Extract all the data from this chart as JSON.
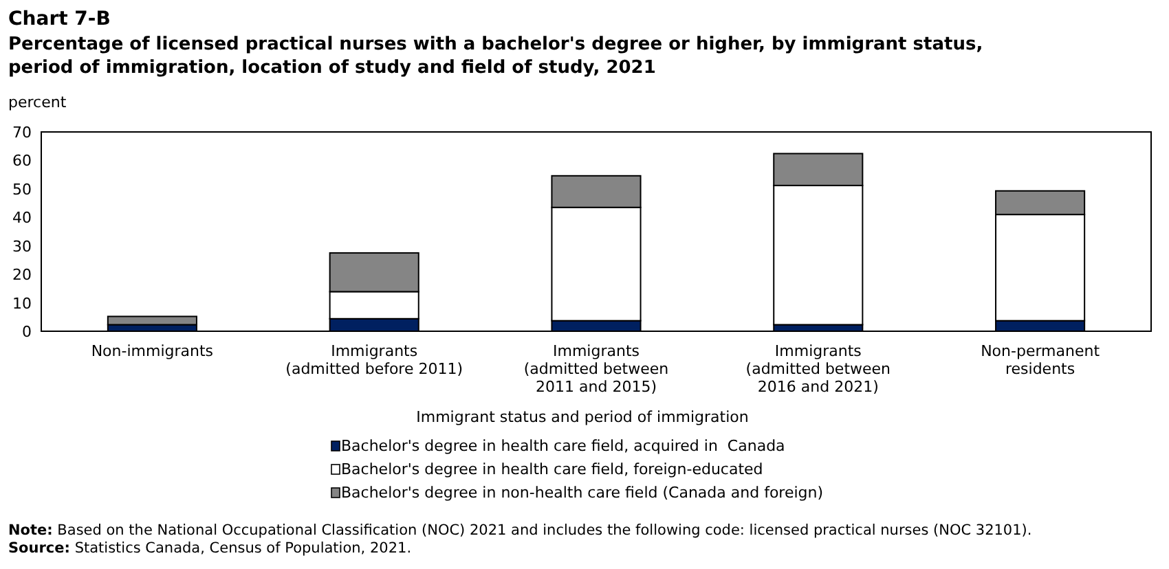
{
  "chart_data": {
    "type": "bar",
    "stacked": true,
    "title": "Chart 7-B",
    "subtitle": "Percentage of licensed practical nurses with a bachelor's degree or higher, by immigrant status, period of immigration, location of study and field of study, 2021",
    "ylabel": "percent",
    "xlabel": "Immigrant status and period of immigration",
    "categories": [
      "Non-immigrants",
      "Immigrants\n(admitted before 2011)",
      "Immigrants\n(admitted between\n2011 and 2015)",
      "Immigrants\n(admitted between\n2016 and 2021)",
      "Non-permanent\nresidents"
    ],
    "series": [
      {
        "name": "Bachelor's degree in health care field, acquired in  Canada",
        "color": "#002060",
        "values": [
          2.3,
          4.4,
          3.7,
          2.3,
          3.7
        ]
      },
      {
        "name": "Bachelor's degree in health care field, foreign-educated",
        "color": "#ffffff",
        "values": [
          0,
          9.5,
          39.8,
          48.9,
          37.3
        ]
      },
      {
        "name": "Bachelor's degree in non-health care field (Canada and foreign)",
        "color": "#858585",
        "values": [
          2.9,
          13.6,
          11.1,
          11.2,
          8.3
        ]
      }
    ],
    "ylim": [
      0,
      70
    ],
    "yticks": [
      0,
      10,
      20,
      30,
      40,
      50,
      60,
      70
    ],
    "grid": false,
    "legend": "bottom",
    "annotations": [
      "Note: Based on the National Occupational Classification (NOC) 2021 and includes the following code: licensed practical nurses (NOC 32101).",
      "Source: Statistics Canada, Census of Population, 2021."
    ]
  }
}
